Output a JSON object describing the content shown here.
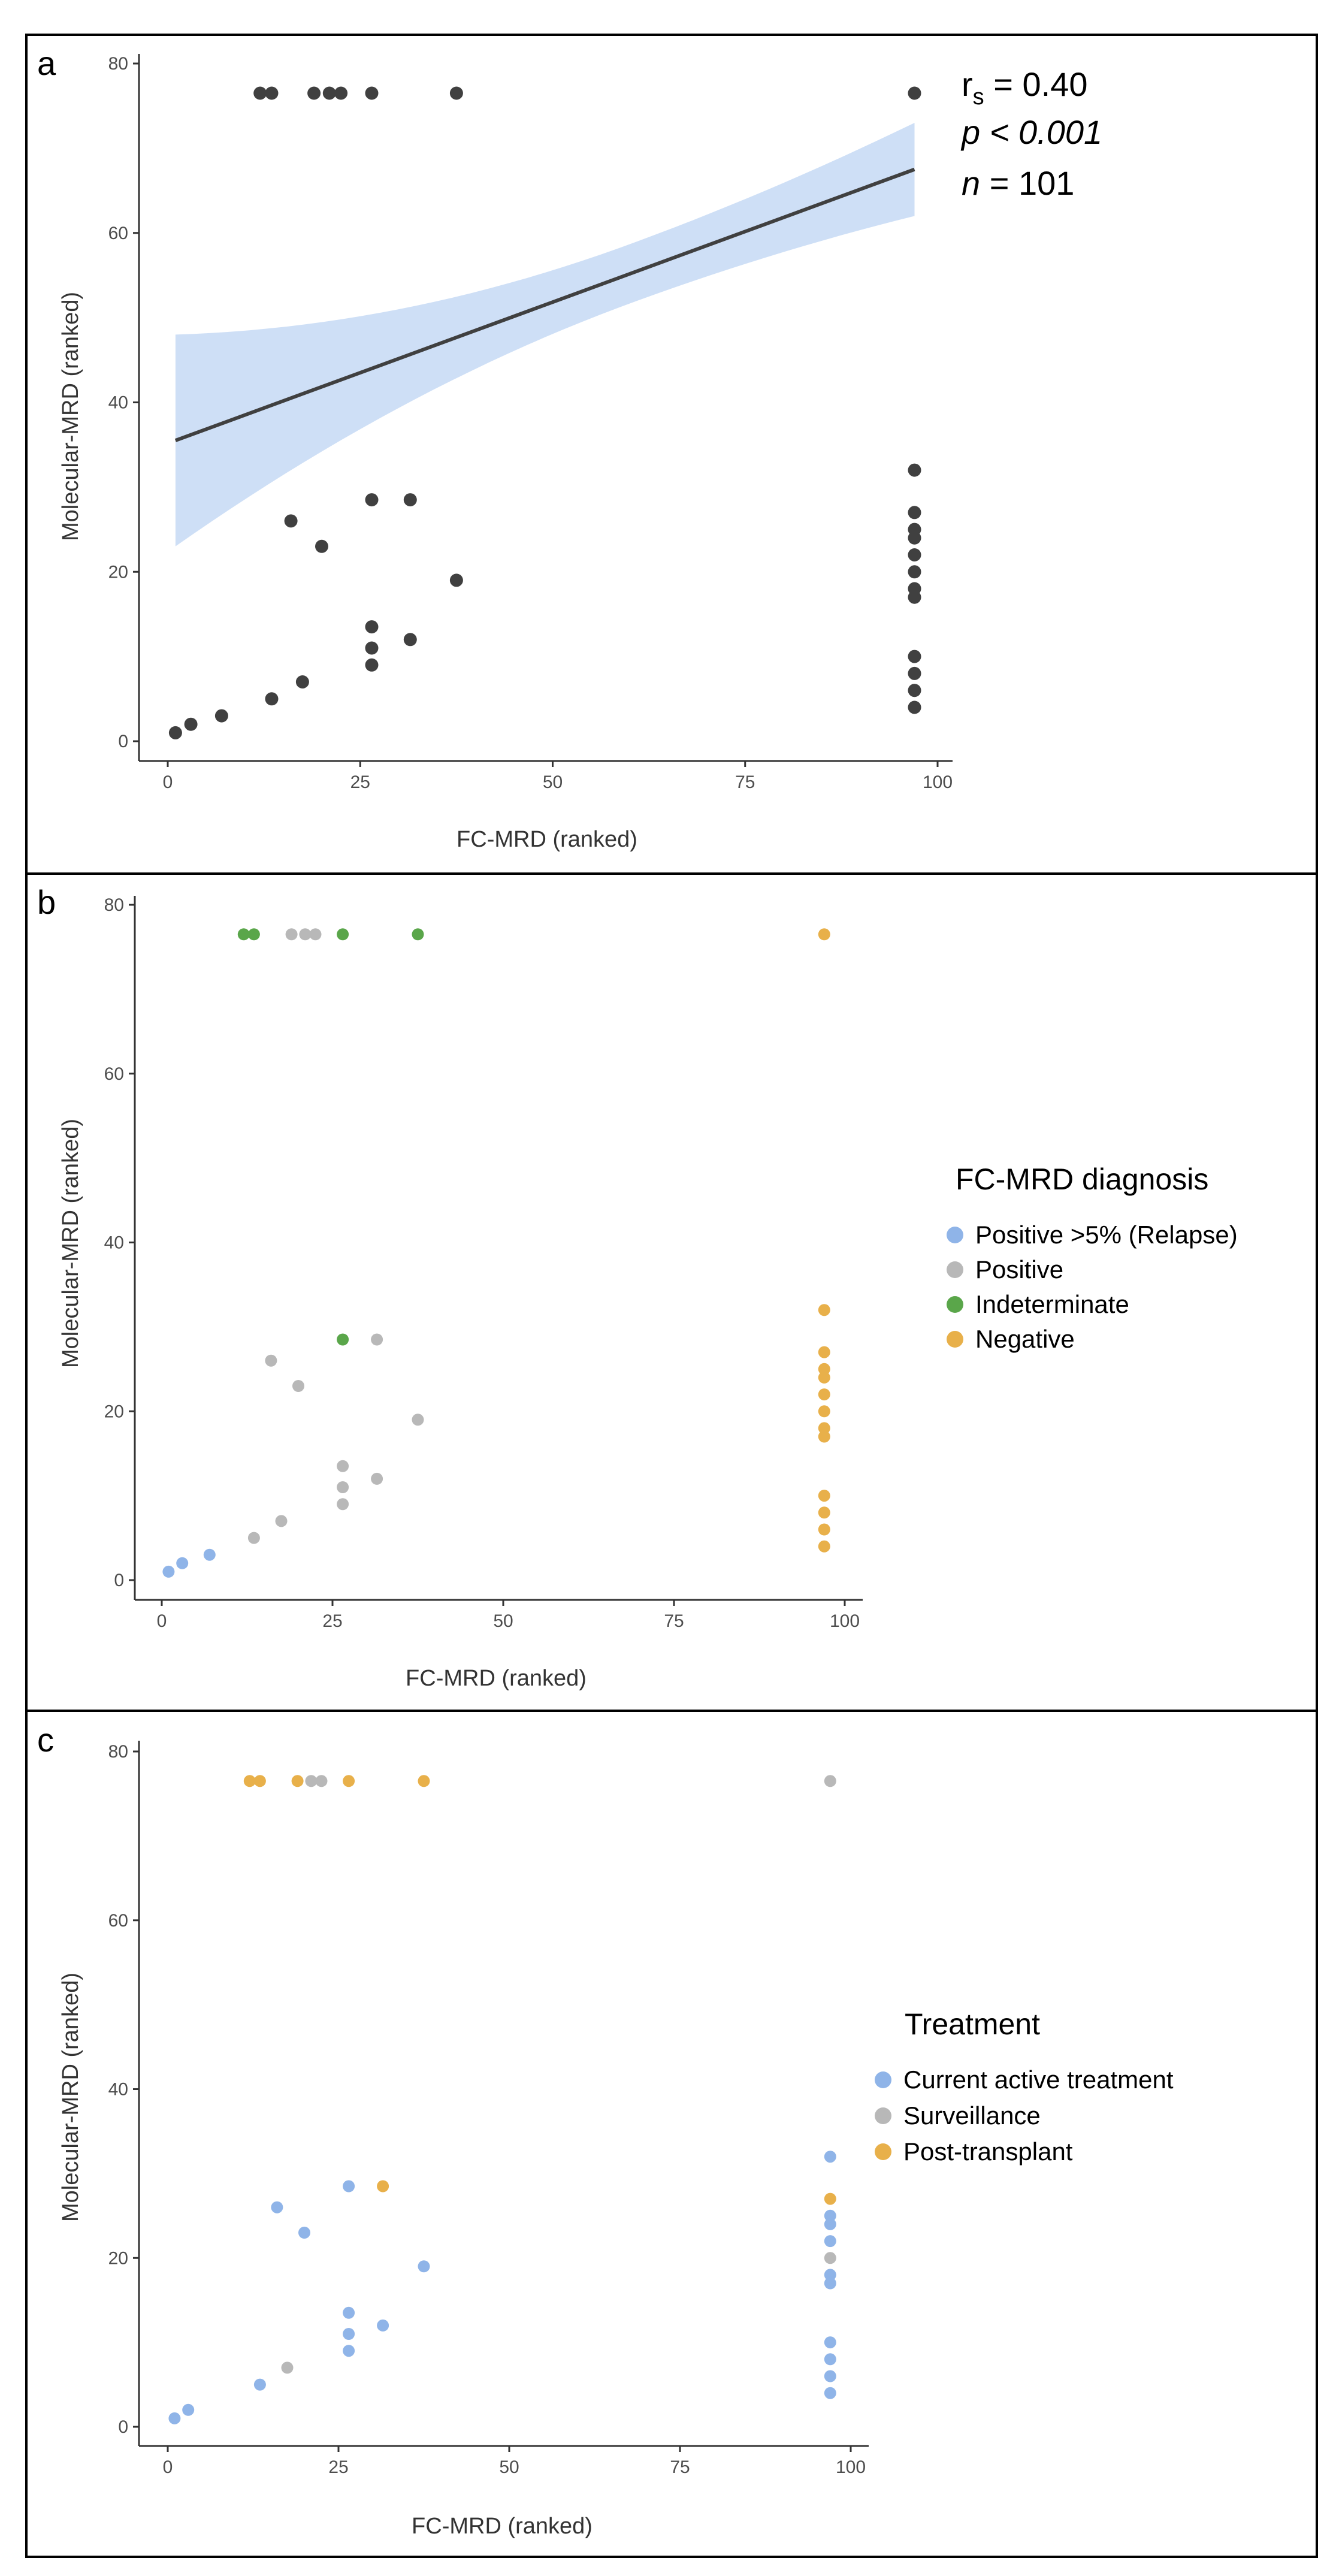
{
  "chart_data": [
    {
      "id": "a",
      "type": "scatter",
      "panel_label": "a",
      "xlabel": "FC-MRD (ranked)",
      "ylabel": "Molecular-MRD (ranked)",
      "xlim": [
        0,
        100
      ],
      "ylim": [
        0,
        80
      ],
      "xticks": [
        0,
        25,
        50,
        75,
        100
      ],
      "yticks": [
        0,
        20,
        40,
        60,
        80
      ],
      "regression": {
        "x": [
          1,
          97
        ],
        "y": [
          35.5,
          67.5
        ],
        "ci_lower": [
          23,
          62
        ],
        "ci_upper": [
          48,
          73
        ],
        "line_color": "#404040",
        "band_color": "#c6d9f5"
      },
      "stats": {
        "rs_prefix": "r",
        "rs_sub": "s",
        "rs_text": " = 0.40",
        "p_text": "p < 0.001",
        "n_label": "n",
        "n_text": " = 101"
      },
      "point_color": "#404040",
      "points": [
        [
          12,
          76.5
        ],
        [
          13.5,
          76.5
        ],
        [
          19,
          76.5
        ],
        [
          21,
          76.5
        ],
        [
          22.5,
          76.5
        ],
        [
          26.5,
          76.5
        ],
        [
          37.5,
          76.5
        ],
        [
          97,
          76.5
        ],
        [
          16,
          26
        ],
        [
          20,
          23
        ],
        [
          26.5,
          28.5
        ],
        [
          31.5,
          28.5
        ],
        [
          37.5,
          19
        ],
        [
          26.5,
          13.5
        ],
        [
          26.5,
          11
        ],
        [
          26.5,
          9
        ],
        [
          31.5,
          12
        ],
        [
          1,
          1
        ],
        [
          3,
          2
        ],
        [
          7,
          3
        ],
        [
          13.5,
          5
        ],
        [
          17.5,
          7
        ],
        [
          97,
          32
        ],
        [
          97,
          27
        ],
        [
          97,
          25
        ],
        [
          97,
          24
        ],
        [
          97,
          22
        ],
        [
          97,
          20
        ],
        [
          97,
          18
        ],
        [
          97,
          17
        ],
        [
          97,
          10
        ],
        [
          97,
          8
        ],
        [
          97,
          6
        ],
        [
          97,
          4
        ]
      ]
    },
    {
      "id": "b",
      "type": "scatter",
      "panel_label": "b",
      "xlabel": "FC-MRD (ranked)",
      "ylabel": "Molecular-MRD (ranked)",
      "xlim": [
        0,
        100
      ],
      "ylim": [
        0,
        80
      ],
      "xticks": [
        0,
        25,
        50,
        75,
        100
      ],
      "yticks": [
        0,
        20,
        40,
        60,
        80
      ],
      "legend_title": "FC-MRD diagnosis",
      "legend": [
        {
          "name": "Positive >5% (Relapse)",
          "color": "#8fb4e8"
        },
        {
          "name": "Positive",
          "color": "#b8b8b8"
        },
        {
          "name": "Indeterminate",
          "color": "#5aa64a"
        },
        {
          "name": "Negative",
          "color": "#e8b04a"
        }
      ],
      "series": [
        {
          "name": "Positive >5% (Relapse)",
          "points": [
            [
              1,
              1
            ],
            [
              3,
              2
            ],
            [
              7,
              3
            ]
          ]
        },
        {
          "name": "Positive",
          "points": [
            [
              19,
              76.5
            ],
            [
              21,
              76.5
            ],
            [
              22.5,
              76.5
            ],
            [
              16,
              26
            ],
            [
              20,
              23
            ],
            [
              31.5,
              28.5
            ],
            [
              37.5,
              19
            ],
            [
              26.5,
              13.5
            ],
            [
              26.5,
              11
            ],
            [
              26.5,
              9
            ],
            [
              31.5,
              12
            ],
            [
              13.5,
              5
            ],
            [
              17.5,
              7
            ]
          ]
        },
        {
          "name": "Indeterminate",
          "points": [
            [
              12,
              76.5
            ],
            [
              13.5,
              76.5
            ],
            [
              26.5,
              76.5
            ],
            [
              37.5,
              76.5
            ],
            [
              26.5,
              28.5
            ]
          ]
        },
        {
          "name": "Negative",
          "points": [
            [
              97,
              76.5
            ],
            [
              97,
              32
            ],
            [
              97,
              27
            ],
            [
              97,
              25
            ],
            [
              97,
              24
            ],
            [
              97,
              22
            ],
            [
              97,
              20
            ],
            [
              97,
              18
            ],
            [
              97,
              17
            ],
            [
              97,
              10
            ],
            [
              97,
              8
            ],
            [
              97,
              6
            ],
            [
              97,
              4
            ]
          ]
        }
      ]
    },
    {
      "id": "c",
      "type": "scatter",
      "panel_label": "c",
      "xlabel": "FC-MRD (ranked)",
      "ylabel": "Molecular-MRD (ranked)",
      "xlim": [
        0,
        100
      ],
      "ylim": [
        0,
        80
      ],
      "xticks": [
        0,
        25,
        50,
        75,
        100
      ],
      "yticks": [
        0,
        20,
        40,
        60,
        80
      ],
      "legend_title": "Treatment",
      "legend": [
        {
          "name": "Current active treatment",
          "color": "#8fb4e8"
        },
        {
          "name": "Surveillance",
          "color": "#b8b8b8"
        },
        {
          "name": "Post-transplant",
          "color": "#e8b04a"
        }
      ],
      "series": [
        {
          "name": "Current active treatment",
          "points": [
            [
              1,
              1
            ],
            [
              3,
              2
            ],
            [
              13.5,
              5
            ],
            [
              16,
              26
            ],
            [
              20,
              23
            ],
            [
              26.5,
              28.5
            ],
            [
              26.5,
              13.5
            ],
            [
              26.5,
              11
            ],
            [
              26.5,
              9
            ],
            [
              31.5,
              12
            ],
            [
              37.5,
              19
            ],
            [
              97,
              32
            ],
            [
              97,
              25
            ],
            [
              97,
              24
            ],
            [
              97,
              22
            ],
            [
              97,
              18
            ],
            [
              97,
              17
            ],
            [
              97,
              10
            ],
            [
              97,
              8
            ],
            [
              97,
              6
            ],
            [
              97,
              4
            ]
          ]
        },
        {
          "name": "Surveillance",
          "points": [
            [
              21,
              76.5
            ],
            [
              22.5,
              76.5
            ],
            [
              17.5,
              7
            ],
            [
              97,
              20
            ],
            [
              97,
              76.5
            ]
          ]
        },
        {
          "name": "Post-transplant",
          "points": [
            [
              12,
              76.5
            ],
            [
              13.5,
              76.5
            ],
            [
              19,
              76.5
            ],
            [
              26.5,
              76.5
            ],
            [
              37.5,
              76.5
            ],
            [
              31.5,
              28.5
            ],
            [
              97,
              27
            ]
          ]
        }
      ]
    }
  ]
}
